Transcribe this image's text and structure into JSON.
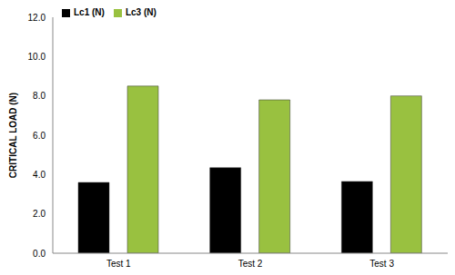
{
  "chart_data": {
    "type": "bar",
    "y_label": "CRITICAL LOAD (N)",
    "categories": [
      "Test 1",
      "Test 2",
      "Test 3"
    ],
    "series": [
      {
        "name": "Lc1 (N)",
        "color": "#000000",
        "values": [
          3.6,
          4.35,
          3.65
        ]
      },
      {
        "name": "Lc3 (N)",
        "color": "#99c140",
        "values": [
          8.5,
          7.8,
          8.0
        ]
      }
    ],
    "ylim": [
      0,
      12
    ],
    "yticks": [
      {
        "value": 0,
        "label": "0.0"
      },
      {
        "value": 2,
        "label": "2.0"
      },
      {
        "value": 4,
        "label": "4.0"
      },
      {
        "value": 6,
        "label": "6.0"
      },
      {
        "value": 8,
        "label": "8.0"
      },
      {
        "value": 10,
        "label": "10.0"
      },
      {
        "value": 12,
        "label": "12.0"
      }
    ],
    "grid": false,
    "legend": "upper left"
  }
}
